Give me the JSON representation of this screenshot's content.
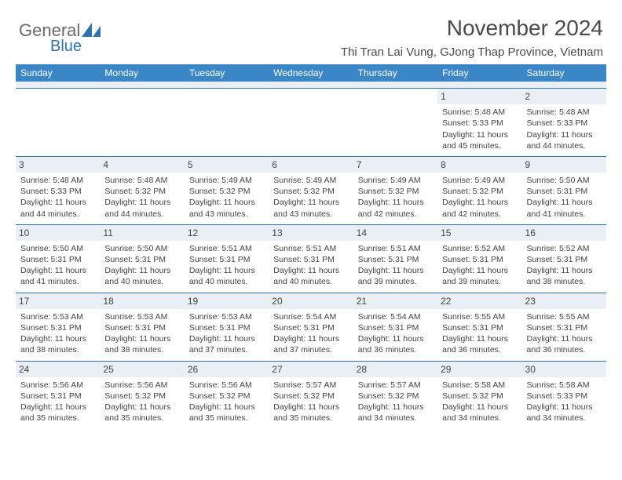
{
  "logo": {
    "text1": "General",
    "text2": "Blue"
  },
  "title": "November 2024",
  "subtitle": "Thi Tran Lai Vung, GJong Thap Province, Vietnam",
  "colors": {
    "header_bg": "#3b86c6",
    "header_text": "#ffffff",
    "daynum_bg": "#e9eff4",
    "row_border": "#2d72b5",
    "text": "#444444",
    "logo_gray": "#6a6a6a",
    "logo_blue": "#2d72b5",
    "background": "#ffffff"
  },
  "typography": {
    "title_fontsize": 28,
    "subtitle_fontsize": 15,
    "header_cell_fontsize": 12,
    "daynum_fontsize": 12,
    "detail_fontsize": 10.5
  },
  "columns": [
    "Sunday",
    "Monday",
    "Tuesday",
    "Wednesday",
    "Thursday",
    "Friday",
    "Saturday"
  ],
  "weeks": [
    [
      null,
      null,
      null,
      null,
      null,
      {
        "n": "1",
        "sunrise": "5:48 AM",
        "sunset": "5:33 PM",
        "daylight": "11 hours and 45 minutes."
      },
      {
        "n": "2",
        "sunrise": "5:48 AM",
        "sunset": "5:33 PM",
        "daylight": "11 hours and 44 minutes."
      }
    ],
    [
      {
        "n": "3",
        "sunrise": "5:48 AM",
        "sunset": "5:33 PM",
        "daylight": "11 hours and 44 minutes."
      },
      {
        "n": "4",
        "sunrise": "5:48 AM",
        "sunset": "5:32 PM",
        "daylight": "11 hours and 44 minutes."
      },
      {
        "n": "5",
        "sunrise": "5:49 AM",
        "sunset": "5:32 PM",
        "daylight": "11 hours and 43 minutes."
      },
      {
        "n": "6",
        "sunrise": "5:49 AM",
        "sunset": "5:32 PM",
        "daylight": "11 hours and 43 minutes."
      },
      {
        "n": "7",
        "sunrise": "5:49 AM",
        "sunset": "5:32 PM",
        "daylight": "11 hours and 42 minutes."
      },
      {
        "n": "8",
        "sunrise": "5:49 AM",
        "sunset": "5:32 PM",
        "daylight": "11 hours and 42 minutes."
      },
      {
        "n": "9",
        "sunrise": "5:50 AM",
        "sunset": "5:31 PM",
        "daylight": "11 hours and 41 minutes."
      }
    ],
    [
      {
        "n": "10",
        "sunrise": "5:50 AM",
        "sunset": "5:31 PM",
        "daylight": "11 hours and 41 minutes."
      },
      {
        "n": "11",
        "sunrise": "5:50 AM",
        "sunset": "5:31 PM",
        "daylight": "11 hours and 40 minutes."
      },
      {
        "n": "12",
        "sunrise": "5:51 AM",
        "sunset": "5:31 PM",
        "daylight": "11 hours and 40 minutes."
      },
      {
        "n": "13",
        "sunrise": "5:51 AM",
        "sunset": "5:31 PM",
        "daylight": "11 hours and 40 minutes."
      },
      {
        "n": "14",
        "sunrise": "5:51 AM",
        "sunset": "5:31 PM",
        "daylight": "11 hours and 39 minutes."
      },
      {
        "n": "15",
        "sunrise": "5:52 AM",
        "sunset": "5:31 PM",
        "daylight": "11 hours and 39 minutes."
      },
      {
        "n": "16",
        "sunrise": "5:52 AM",
        "sunset": "5:31 PM",
        "daylight": "11 hours and 38 minutes."
      }
    ],
    [
      {
        "n": "17",
        "sunrise": "5:53 AM",
        "sunset": "5:31 PM",
        "daylight": "11 hours and 38 minutes."
      },
      {
        "n": "18",
        "sunrise": "5:53 AM",
        "sunset": "5:31 PM",
        "daylight": "11 hours and 38 minutes."
      },
      {
        "n": "19",
        "sunrise": "5:53 AM",
        "sunset": "5:31 PM",
        "daylight": "11 hours and 37 minutes."
      },
      {
        "n": "20",
        "sunrise": "5:54 AM",
        "sunset": "5:31 PM",
        "daylight": "11 hours and 37 minutes."
      },
      {
        "n": "21",
        "sunrise": "5:54 AM",
        "sunset": "5:31 PM",
        "daylight": "11 hours and 36 minutes."
      },
      {
        "n": "22",
        "sunrise": "5:55 AM",
        "sunset": "5:31 PM",
        "daylight": "11 hours and 36 minutes."
      },
      {
        "n": "23",
        "sunrise": "5:55 AM",
        "sunset": "5:31 PM",
        "daylight": "11 hours and 36 minutes."
      }
    ],
    [
      {
        "n": "24",
        "sunrise": "5:56 AM",
        "sunset": "5:31 PM",
        "daylight": "11 hours and 35 minutes."
      },
      {
        "n": "25",
        "sunrise": "5:56 AM",
        "sunset": "5:32 PM",
        "daylight": "11 hours and 35 minutes."
      },
      {
        "n": "26",
        "sunrise": "5:56 AM",
        "sunset": "5:32 PM",
        "daylight": "11 hours and 35 minutes."
      },
      {
        "n": "27",
        "sunrise": "5:57 AM",
        "sunset": "5:32 PM",
        "daylight": "11 hours and 35 minutes."
      },
      {
        "n": "28",
        "sunrise": "5:57 AM",
        "sunset": "5:32 PM",
        "daylight": "11 hours and 34 minutes."
      },
      {
        "n": "29",
        "sunrise": "5:58 AM",
        "sunset": "5:32 PM",
        "daylight": "11 hours and 34 minutes."
      },
      {
        "n": "30",
        "sunrise": "5:58 AM",
        "sunset": "5:33 PM",
        "daylight": "11 hours and 34 minutes."
      }
    ]
  ],
  "labels": {
    "sunrise": "Sunrise: ",
    "sunset": "Sunset: ",
    "daylight": "Daylight: "
  }
}
